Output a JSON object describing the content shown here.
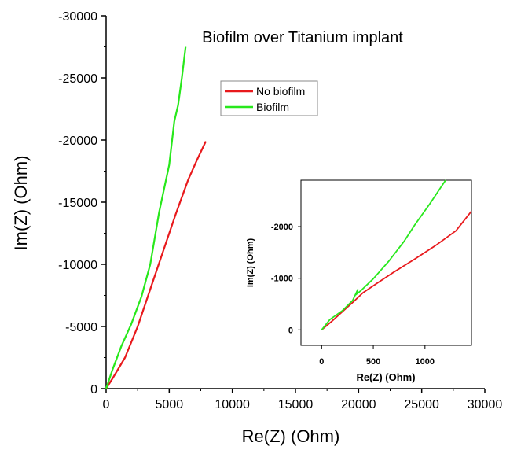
{
  "chart_data": [
    {
      "type": "line",
      "title": "Biofilm over Titanium implant",
      "xlabel": "Re(Z) (Ohm)",
      "ylabel": "Im(Z) (Ohm)",
      "xlim": [
        0,
        30000
      ],
      "ylim": [
        0,
        -30000
      ],
      "xticks": [
        0,
        5000,
        10000,
        15000,
        20000,
        25000,
        30000
      ],
      "yticks": [
        0,
        -5000,
        -10000,
        -15000,
        -20000,
        -25000,
        -30000
      ],
      "grid": false,
      "legend": "top-center",
      "series": [
        {
          "name": "No biofilm",
          "color": "#e8191c",
          "x": [
            0,
            500,
            1500,
            2500,
            3500,
            4500,
            5500,
            6500,
            7200,
            7900
          ],
          "y": [
            0,
            -800,
            -2500,
            -5000,
            -8000,
            -11000,
            -14000,
            -16800,
            -18400,
            -19900
          ]
        },
        {
          "name": "Biofilm",
          "color": "#28e81c",
          "x": [
            0,
            500,
            1200,
            2000,
            2800,
            3500,
            4200,
            5000,
            5400,
            5700,
            6000,
            6300
          ],
          "y": [
            0,
            -1500,
            -3400,
            -5200,
            -7400,
            -10000,
            -14200,
            -18000,
            -21500,
            -22800,
            -25000,
            -27500
          ]
        }
      ]
    },
    {
      "type": "line",
      "title": "",
      "xlabel": "Re(Z) (Ohm)",
      "ylabel": "Im(Z) (Ohm)",
      "xlim": [
        -200,
        1450
      ],
      "ylim": [
        300,
        -2900
      ],
      "xticks": [
        0,
        500,
        1000
      ],
      "yticks": [
        0,
        -1000,
        -2000
      ],
      "grid": false,
      "series": [
        {
          "name": "No biofilm",
          "color": "#e8191c",
          "x": [
            0,
            100,
            200,
            300,
            400,
            550,
            700,
            900,
            1100,
            1300,
            1450
          ],
          "y": [
            0,
            -170,
            -350,
            -530,
            -720,
            -920,
            -1120,
            -1370,
            -1630,
            -1920,
            -2300
          ]
        },
        {
          "name": "Biofilm",
          "color": "#28e81c",
          "x": [
            0,
            80,
            200,
            300,
            350,
            330,
            380,
            500,
            650,
            800,
            900,
            1050,
            1200
          ],
          "y": [
            0,
            -200,
            -370,
            -570,
            -780,
            -680,
            -760,
            -990,
            -1330,
            -1720,
            -2030,
            -2450,
            -2900
          ]
        }
      ]
    }
  ]
}
